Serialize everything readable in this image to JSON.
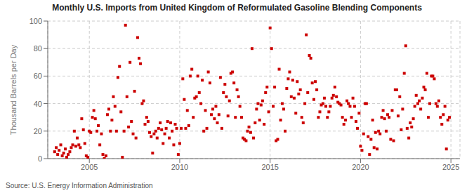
{
  "chart_data": {
    "type": "scatter",
    "title": "Monthly U.S. Imports from United Kingdom of Reformulated Gasoline Blending Components",
    "y_label": "Thousand Barrels per Day",
    "annotation": "Source: U.S. Energy Information Administration",
    "color": "#cc0000",
    "marker": "square",
    "grid": true,
    "xlim": [
      2002.7,
      2025.5
    ],
    "ylim": [
      0,
      100
    ],
    "xticks": [
      2005,
      2010,
      2015,
      2020,
      2025
    ],
    "yticks": [
      0,
      20,
      40,
      60,
      80,
      100
    ],
    "x": [
      2003.08,
      2003.17,
      2003.25,
      2003.33,
      2003.42,
      2003.5,
      2003.58,
      2003.67,
      2003.75,
      2003.83,
      2003.92,
      2004.0,
      2004.08,
      2004.17,
      2004.25,
      2004.33,
      2004.42,
      2004.5,
      2004.58,
      2004.67,
      2004.75,
      2004.83,
      2004.92,
      2005.0,
      2005.08,
      2005.17,
      2005.25,
      2005.33,
      2005.42,
      2005.5,
      2005.58,
      2005.67,
      2005.75,
      2005.83,
      2005.92,
      2006.0,
      2006.08,
      2006.17,
      2006.25,
      2006.33,
      2006.42,
      2006.5,
      2006.58,
      2006.67,
      2006.75,
      2006.83,
      2006.92,
      2007.0,
      2007.08,
      2007.17,
      2007.25,
      2007.33,
      2007.42,
      2007.5,
      2007.58,
      2007.67,
      2007.75,
      2007.83,
      2007.92,
      2008.0,
      2008.08,
      2008.17,
      2008.25,
      2008.33,
      2008.42,
      2008.5,
      2008.58,
      2008.67,
      2008.75,
      2008.83,
      2008.92,
      2009.0,
      2009.08,
      2009.17,
      2009.25,
      2009.33,
      2009.42,
      2009.5,
      2009.58,
      2009.67,
      2009.75,
      2009.83,
      2009.92,
      2010.0,
      2010.08,
      2010.17,
      2010.25,
      2010.33,
      2010.42,
      2010.5,
      2010.58,
      2010.67,
      2010.75,
      2010.83,
      2010.92,
      2011.0,
      2011.08,
      2011.17,
      2011.25,
      2011.33,
      2011.42,
      2011.5,
      2011.58,
      2011.67,
      2011.75,
      2011.83,
      2011.92,
      2012.0,
      2012.08,
      2012.17,
      2012.25,
      2012.33,
      2012.42,
      2012.5,
      2012.58,
      2012.67,
      2012.75,
      2012.83,
      2012.92,
      2013.0,
      2013.08,
      2013.17,
      2013.25,
      2013.33,
      2013.42,
      2013.5,
      2013.58,
      2013.67,
      2013.75,
      2013.83,
      2013.92,
      2014.0,
      2014.08,
      2014.17,
      2014.25,
      2014.33,
      2014.42,
      2014.5,
      2014.58,
      2014.67,
      2014.75,
      2014.83,
      2014.92,
      2015.0,
      2015.08,
      2015.17,
      2015.25,
      2015.33,
      2015.42,
      2015.5,
      2015.58,
      2015.67,
      2015.75,
      2015.83,
      2015.92,
      2016.0,
      2016.08,
      2016.17,
      2016.25,
      2016.33,
      2016.42,
      2016.5,
      2016.58,
      2016.67,
      2016.75,
      2016.83,
      2016.92,
      2017.0,
      2017.08,
      2017.17,
      2017.25,
      2017.33,
      2017.42,
      2017.5,
      2017.58,
      2017.67,
      2017.75,
      2017.83,
      2017.92,
      2018.0,
      2018.08,
      2018.17,
      2018.25,
      2018.33,
      2018.42,
      2018.5,
      2018.58,
      2018.67,
      2018.75,
      2018.83,
      2018.92,
      2019.0,
      2019.08,
      2019.17,
      2019.25,
      2019.33,
      2019.42,
      2019.5,
      2019.58,
      2019.67,
      2019.75,
      2019.83,
      2019.92,
      2020.0,
      2020.08,
      2020.17,
      2020.25,
      2020.33,
      2020.42,
      2020.5,
      2020.58,
      2020.67,
      2020.75,
      2020.83,
      2020.92,
      2021.0,
      2021.08,
      2021.17,
      2021.25,
      2021.33,
      2021.42,
      2021.5,
      2021.58,
      2021.67,
      2021.75,
      2021.83,
      2021.92,
      2022.0,
      2022.08,
      2022.17,
      2022.25,
      2022.33,
      2022.42,
      2022.5,
      2022.58,
      2022.67,
      2022.75,
      2022.83,
      2022.92,
      2023.0,
      2023.08,
      2023.17,
      2023.25,
      2023.33,
      2023.42,
      2023.5,
      2023.58,
      2023.67,
      2023.75,
      2023.83,
      2023.92,
      2024.0,
      2024.08,
      2024.17,
      2024.25,
      2024.33,
      2024.42,
      2024.5,
      2024.58,
      2024.67,
      2024.75,
      2024.83,
      2024.92
    ],
    "values": [
      5,
      8,
      3,
      6,
      10,
      2,
      4,
      7,
      1,
      3,
      5,
      8,
      10,
      20,
      9,
      15,
      10,
      8,
      29,
      21,
      11,
      2,
      1,
      20,
      19,
      30,
      35,
      29,
      20,
      24,
      10,
      18,
      3,
      0,
      2,
      32,
      36,
      20,
      28,
      45,
      38,
      20,
      59,
      67,
      34,
      1,
      20,
      97,
      45,
      23,
      70,
      27,
      18,
      49,
      15,
      88,
      73,
      69,
      40,
      42,
      25,
      30,
      27,
      19,
      16,
      4,
      18,
      20,
      15,
      22,
      26,
      21,
      11,
      18,
      22,
      27,
      15,
      26,
      20,
      10,
      25,
      22,
      3,
      11,
      22,
      58,
      43,
      22,
      35,
      24,
      60,
      65,
      30,
      44,
      45,
      60,
      48,
      40,
      57,
      20,
      35,
      22,
      63,
      55,
      32,
      36,
      29,
      38,
      26,
      32,
      59,
      22,
      48,
      54,
      45,
      31,
      42,
      62,
      63,
      55,
      30,
      50,
      45,
      38,
      30,
      15,
      14,
      13,
      20,
      23,
      19,
      80,
      15,
      26,
      36,
      40,
      28,
      39,
      42,
      25,
      48,
      52,
      34,
      95,
      80,
      38,
      52,
      13,
      14,
      65,
      28,
      40,
      36,
      20,
      51,
      58,
      63,
      45,
      57,
      44,
      33,
      56,
      47,
      50,
      30,
      26,
      40,
      90,
      48,
      75,
      73,
      55,
      43,
      56,
      50,
      30,
      34,
      39,
      40,
      44,
      38,
      30,
      34,
      38,
      44,
      46,
      52,
      45,
      41,
      40,
      39,
      30,
      25,
      28,
      42,
      40,
      38,
      30,
      44,
      38,
      27,
      22,
      33,
      9,
      6,
      18,
      40,
      40,
      16,
      3,
      14,
      28,
      8,
      19,
      7,
      20,
      18,
      30,
      35,
      29,
      20,
      32,
      30,
      14,
      35,
      13,
      50,
      50,
      31,
      45,
      21,
      36,
      62,
      82,
      22,
      15,
      26,
      23,
      29,
      38,
      46,
      40,
      42,
      36,
      44,
      52,
      50,
      62,
      30,
      40,
      60,
      60,
      58,
      40,
      38,
      42,
      30,
      25,
      32,
      38,
      7,
      28,
      30
    ]
  }
}
